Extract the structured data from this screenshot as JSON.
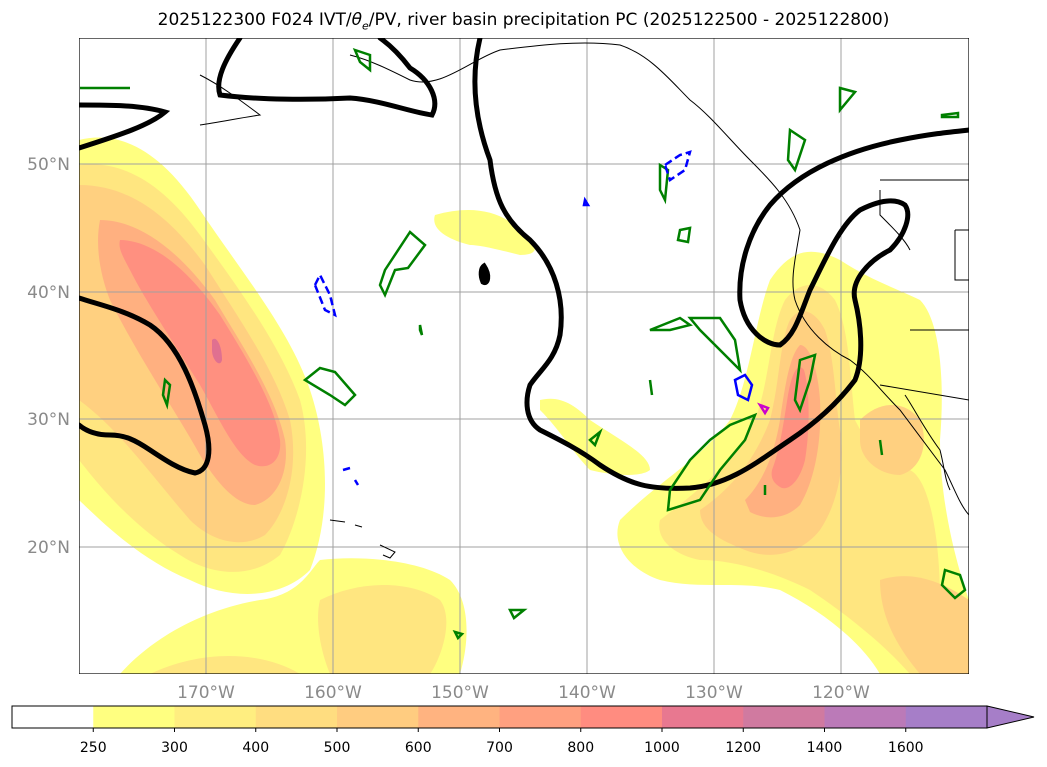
{
  "title": {
    "text_prefix": "2025122300 F024 IVT/",
    "theta": "θ",
    "theta_sub": "e",
    "text_suffix": "/PV, river basin precipitation PC (2025122500 - 2025122800)"
  },
  "lat_labels": [
    "50°N",
    "40°N",
    "30°N",
    "20°N"
  ],
  "lon_labels": [
    "170°W",
    "160°W",
    "150°W",
    "140°W",
    "130°W",
    "120°W"
  ],
  "colorbar": {
    "ticks": [
      "250",
      "300",
      "400",
      "500",
      "600",
      "700",
      "800",
      "1000",
      "1200",
      "1400",
      "1600"
    ],
    "colors": [
      "#ffffff",
      "#ffff80",
      "#ffee80",
      "#ffdd80",
      "#ffcc80",
      "#ffb380",
      "#ffa080",
      "#ff8c80",
      "#e87890",
      "#d07aa0",
      "#bb7ab8",
      "#a67ec8"
    ],
    "extend": "max"
  },
  "map": {
    "region": "North Pacific / North America west coast",
    "fill_colors": [
      "#ffff80",
      "#ffe680",
      "#ffd080",
      "#ffb080",
      "#ff9080",
      "#e07090",
      "#b070c0"
    ],
    "pv_contour_color": "#000000",
    "theta_e_positive_color": "#008000",
    "theta_e_negative_color": "#0000ff",
    "marker_color": "#cc00cc",
    "coastline_color": "#000000",
    "grid_color": "#a0a0a0"
  }
}
